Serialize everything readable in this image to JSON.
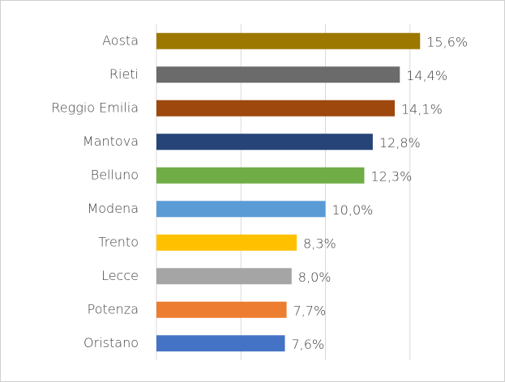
{
  "chart_data": {
    "type": "bar",
    "orientation": "horizontal",
    "categories": [
      "Aosta",
      "Rieti",
      "Reggio Emilia",
      "Mantova",
      "Belluno",
      "Modena",
      "Trento",
      "Lecce",
      "Potenza",
      "Oristano"
    ],
    "values": [
      15.6,
      14.4,
      14.1,
      12.8,
      12.3,
      10.0,
      8.3,
      8.0,
      7.7,
      7.6
    ],
    "value_labels": [
      "15,6%",
      "14,4%",
      "14,1%",
      "12,8%",
      "12,3%",
      "10,0%",
      "8,3%",
      "8,0%",
      "7,7%",
      "7,6%"
    ],
    "colors": [
      "#9c7800",
      "#6b6b6b",
      "#9e480e",
      "#264478",
      "#70ad47",
      "#5b9bd5",
      "#ffc000",
      "#a5a5a5",
      "#ed7d31",
      "#4472c4"
    ],
    "xlim": [
      0,
      20
    ],
    "xticks": [
      0,
      5,
      10,
      15
    ],
    "grid": true
  }
}
